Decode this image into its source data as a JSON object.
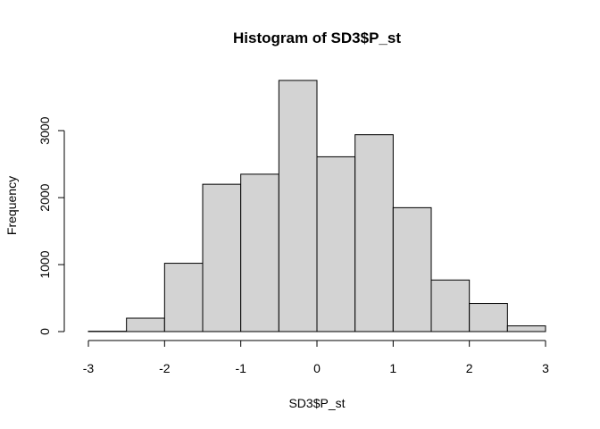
{
  "chart_data": {
    "type": "bar",
    "subtype": "histogram",
    "title": "Histogram of SD3$P_st",
    "xlabel": "SD3$P_st",
    "ylabel": "Frequency",
    "xlim": [
      -3,
      3
    ],
    "ylim": [
      0,
      3750
    ],
    "x_ticks": [
      "-3",
      "-2",
      "-1",
      "0",
      "1",
      "2",
      "3"
    ],
    "x_tick_values": [
      -3,
      -2,
      -1,
      0,
      1,
      2,
      3
    ],
    "y_ticks": [
      "0",
      "1000",
      "2000",
      "3000"
    ],
    "y_tick_values": [
      0,
      1000,
      2000,
      3000
    ],
    "bins": [
      {
        "start": -3.0,
        "end": -2.5,
        "count": 5
      },
      {
        "start": -2.5,
        "end": -2.0,
        "count": 200
      },
      {
        "start": -2.0,
        "end": -1.5,
        "count": 1020
      },
      {
        "start": -1.5,
        "end": -1.0,
        "count": 2200
      },
      {
        "start": -1.0,
        "end": -0.5,
        "count": 2350
      },
      {
        "start": -0.5,
        "end": 0.0,
        "count": 3750
      },
      {
        "start": 0.0,
        "end": 0.5,
        "count": 2610
      },
      {
        "start": 0.5,
        "end": 1.0,
        "count": 2940
      },
      {
        "start": 1.0,
        "end": 1.5,
        "count": 1850
      },
      {
        "start": 1.5,
        "end": 2.0,
        "count": 770
      },
      {
        "start": 2.0,
        "end": 2.5,
        "count": 420
      },
      {
        "start": 2.5,
        "end": 3.0,
        "count": 85
      }
    ],
    "bar_color": "#d3d3d3",
    "bar_border_color": "#000000",
    "grid": false,
    "legend": "none"
  }
}
